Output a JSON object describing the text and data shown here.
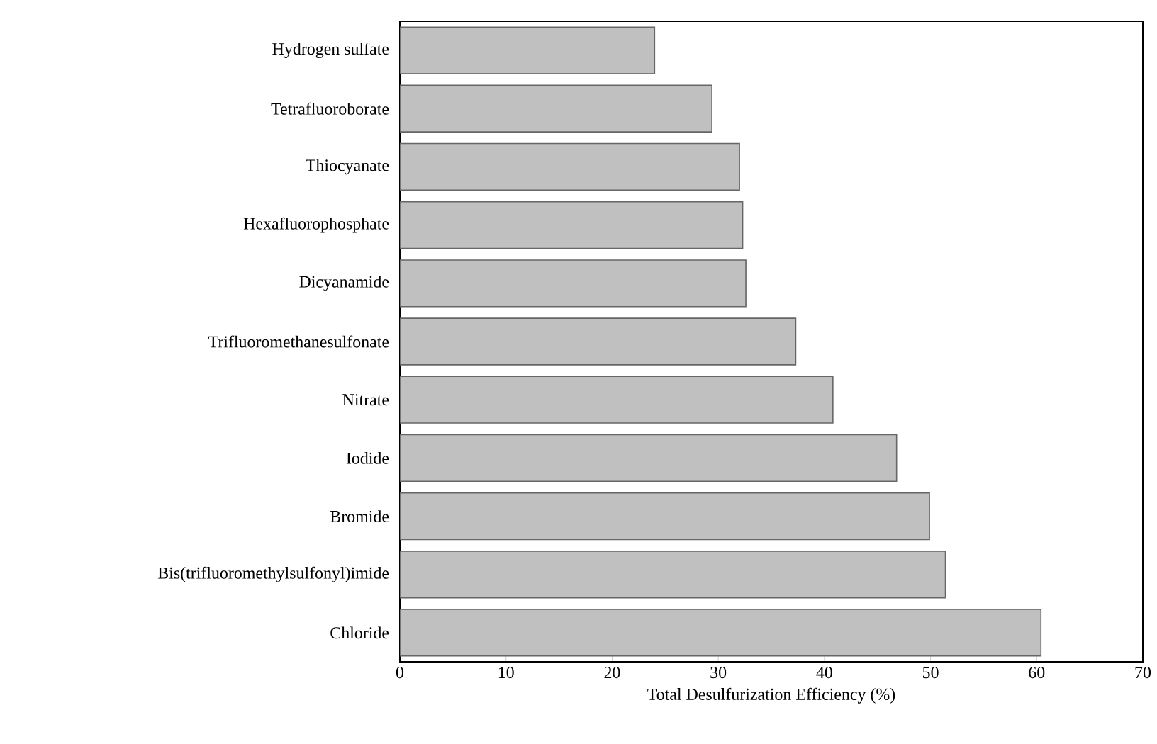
{
  "chart_data": {
    "type": "bar",
    "orientation": "horizontal",
    "xlabel": "Total Desulfurization Efficiency (%)",
    "categories": [
      "Hydrogen sulfate",
      "Tetrafluoroborate",
      "Thiocyanate",
      "Hexafluorophosphate",
      "Dicyanamide",
      "Trifluoromethanesulfonate",
      "Nitrate",
      "Iodide",
      "Bromide",
      "Bis(trifluoromethylsulfonyl)imide",
      "Chloride"
    ],
    "values": [
      24.0,
      29.4,
      32.0,
      32.3,
      32.6,
      37.3,
      40.8,
      46.8,
      49.9,
      51.4,
      60.4
    ],
    "color": "#c0c0c0",
    "xlim": [
      0,
      70
    ],
    "xticks": [
      0,
      10,
      20,
      30,
      40,
      50,
      60,
      70
    ]
  }
}
